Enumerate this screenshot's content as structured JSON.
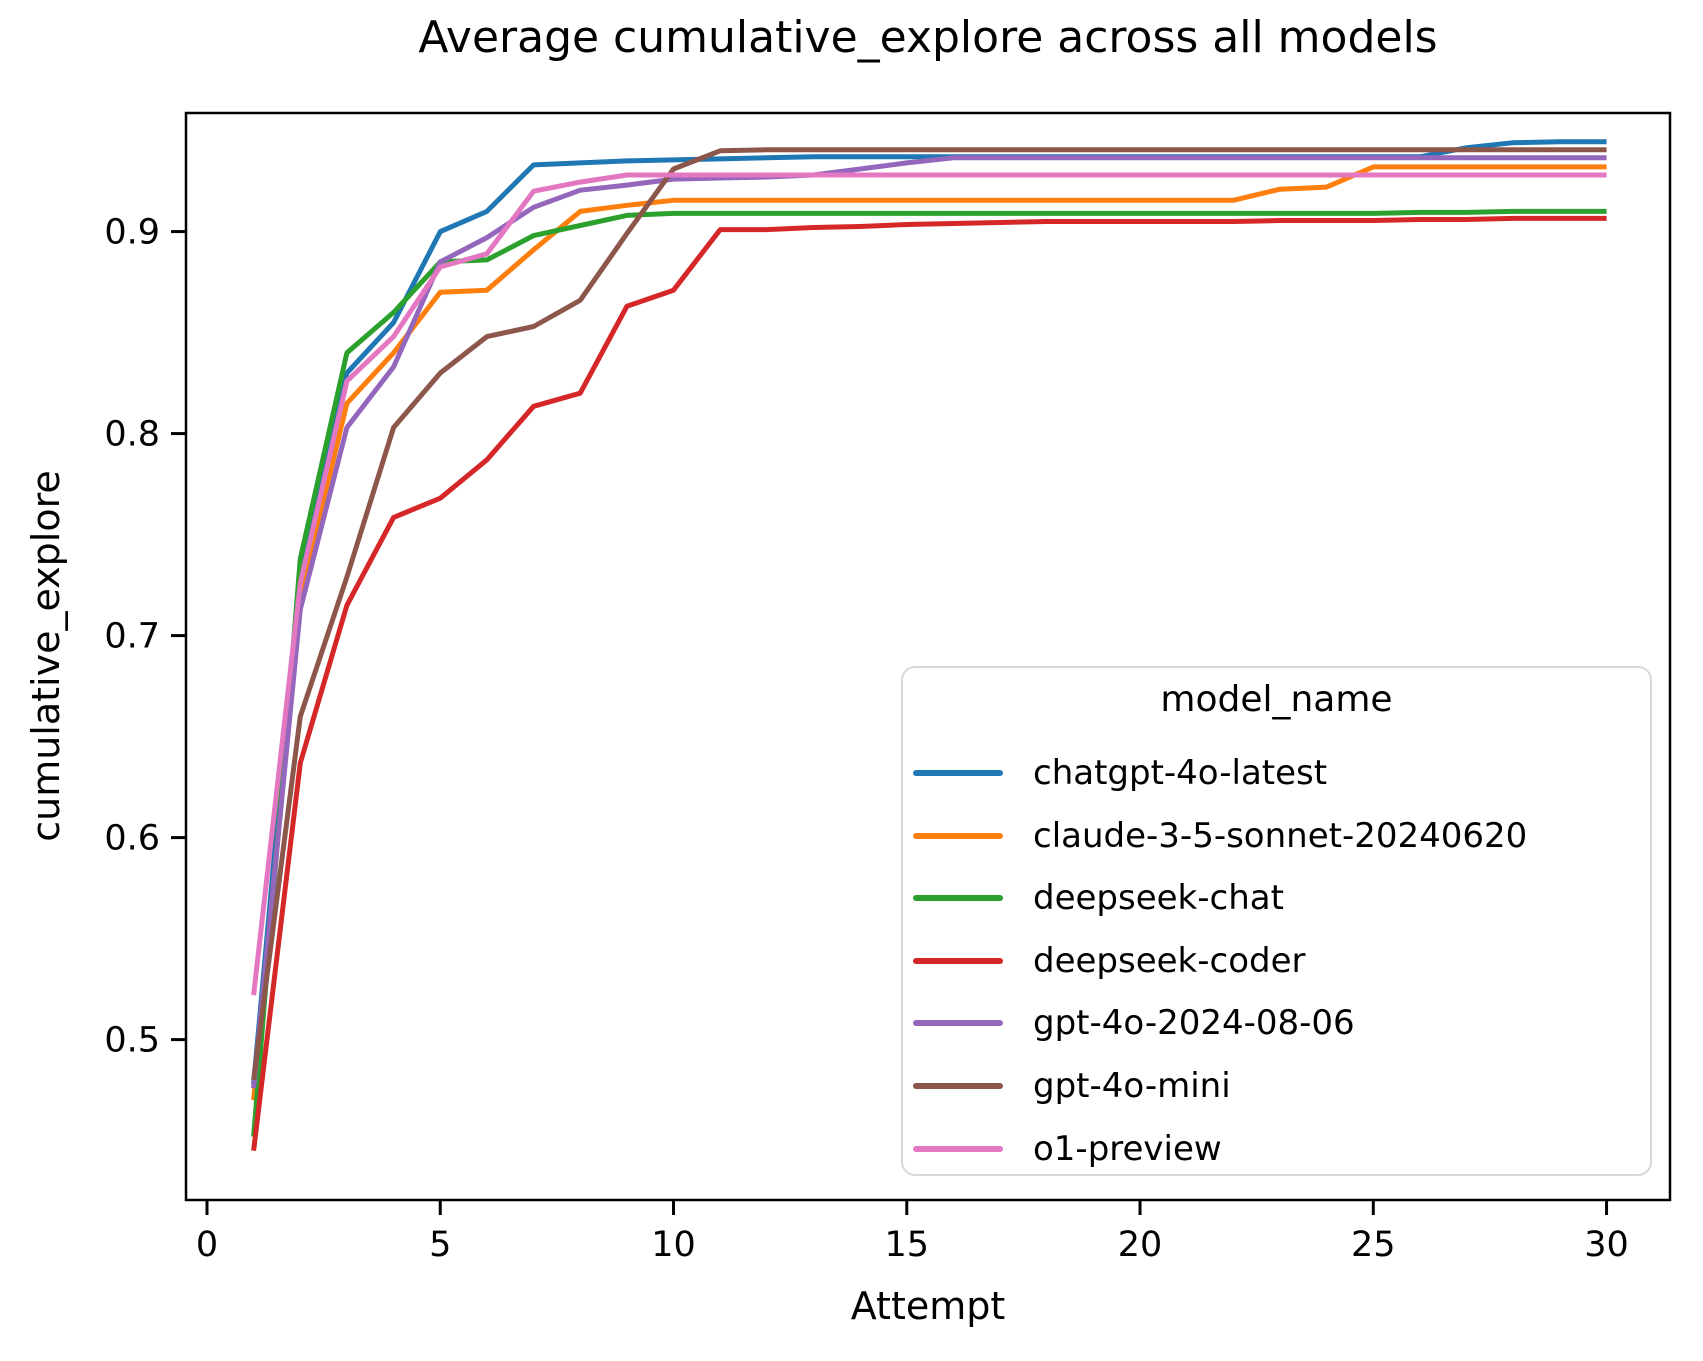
{
  "chart_data": {
    "type": "line",
    "title": "Average cumulative_explore across all models",
    "xlabel": "Attempt",
    "ylabel": "cumulative_explore",
    "legend_title": "model_name",
    "legend_position": "lower-right-inside",
    "grid": false,
    "xlim": [
      -0.45,
      31.36
    ],
    "ylim": [
      0.4206,
      0.9587
    ],
    "x_ticks": [
      0,
      5,
      10,
      15,
      20,
      25,
      30
    ],
    "x_tick_labels": [
      "0",
      "5",
      "10",
      "15",
      "20",
      "25",
      "30"
    ],
    "y_ticks": [
      0.5,
      0.6,
      0.7,
      0.8,
      0.9
    ],
    "y_tick_labels": [
      "0.5",
      "0.6",
      "0.7",
      "0.8",
      "0.9"
    ],
    "x": [
      1,
      2,
      3,
      4,
      5,
      6,
      7,
      8,
      9,
      10,
      11,
      12,
      13,
      14,
      15,
      16,
      17,
      18,
      19,
      20,
      21,
      22,
      23,
      24,
      25,
      26,
      27,
      28,
      29,
      30
    ],
    "series": [
      {
        "name": "chatgpt-4o-latest",
        "color": "#1f77b4",
        "values": [
          0.478,
          0.732,
          0.83,
          0.855,
          0.9,
          0.91,
          0.933,
          0.934,
          0.935,
          0.9355,
          0.936,
          0.9365,
          0.937,
          0.937,
          0.937,
          0.937,
          0.937,
          0.937,
          0.937,
          0.937,
          0.937,
          0.937,
          0.937,
          0.937,
          0.937,
          0.937,
          0.9415,
          0.944,
          0.9445,
          0.9445
        ]
      },
      {
        "name": "claude-3-5-sonnet-20240620",
        "color": "#ff7f0e",
        "values": [
          0.47,
          0.719,
          0.815,
          0.84,
          0.87,
          0.871,
          0.891,
          0.91,
          0.913,
          0.9155,
          0.9155,
          0.9155,
          0.9155,
          0.9155,
          0.9155,
          0.9155,
          0.9155,
          0.9155,
          0.9155,
          0.9155,
          0.9155,
          0.9155,
          0.921,
          0.922,
          0.932,
          0.932,
          0.932,
          0.932,
          0.932,
          0.932
        ]
      },
      {
        "name": "deepseek-chat",
        "color": "#2ca02c",
        "values": [
          0.452,
          0.738,
          0.84,
          0.86,
          0.885,
          0.886,
          0.898,
          0.903,
          0.908,
          0.909,
          0.909,
          0.909,
          0.909,
          0.909,
          0.909,
          0.909,
          0.909,
          0.909,
          0.909,
          0.909,
          0.909,
          0.909,
          0.909,
          0.909,
          0.909,
          0.9095,
          0.9095,
          0.91,
          0.91,
          0.91
        ]
      },
      {
        "name": "deepseek-coder",
        "color": "#d62728",
        "values": [
          0.445,
          0.637,
          0.715,
          0.7585,
          0.768,
          0.787,
          0.8135,
          0.82,
          0.863,
          0.871,
          0.901,
          0.901,
          0.902,
          0.9025,
          0.9035,
          0.904,
          0.9045,
          0.905,
          0.905,
          0.905,
          0.905,
          0.905,
          0.9055,
          0.9055,
          0.9055,
          0.906,
          0.906,
          0.9065,
          0.9065,
          0.9065
        ]
      },
      {
        "name": "gpt-4o-2024-08-06",
        "color": "#9467bd",
        "values": [
          0.476,
          0.713,
          0.803,
          0.833,
          0.885,
          0.897,
          0.912,
          0.9205,
          0.923,
          0.926,
          0.9265,
          0.927,
          0.928,
          0.931,
          0.934,
          0.9365,
          0.9365,
          0.9365,
          0.9365,
          0.9365,
          0.9365,
          0.9365,
          0.9365,
          0.9365,
          0.9365,
          0.9365,
          0.9365,
          0.9365,
          0.9365,
          0.9365
        ]
      },
      {
        "name": "gpt-4o-mini",
        "color": "#8c564b",
        "values": [
          0.48,
          0.66,
          0.729,
          0.803,
          0.83,
          0.848,
          0.853,
          0.866,
          0.899,
          0.931,
          0.94,
          0.9405,
          0.9405,
          0.9405,
          0.9405,
          0.9405,
          0.9405,
          0.9405,
          0.9405,
          0.9405,
          0.9405,
          0.9405,
          0.9405,
          0.9405,
          0.9405,
          0.9405,
          0.9405,
          0.9405,
          0.9405,
          0.9405
        ]
      },
      {
        "name": "o1-preview",
        "color": "#e377c2",
        "values": [
          0.522,
          0.726,
          0.826,
          0.848,
          0.8825,
          0.889,
          0.92,
          0.9245,
          0.928,
          0.928,
          0.928,
          0.928,
          0.928,
          0.928,
          0.928,
          0.928,
          0.928,
          0.928,
          0.928,
          0.928,
          0.928,
          0.928,
          0.928,
          0.928,
          0.928,
          0.928,
          0.928,
          0.928,
          0.928,
          0.928
        ]
      }
    ]
  }
}
